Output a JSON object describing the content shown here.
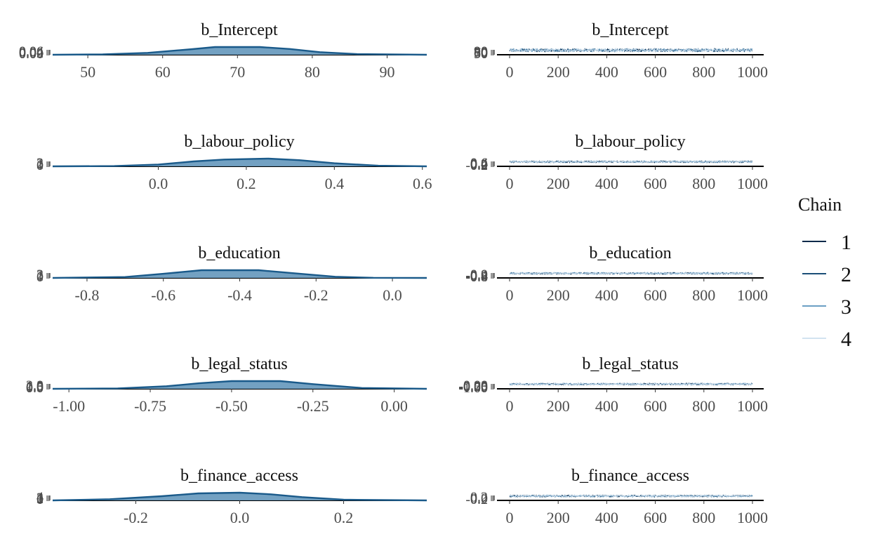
{
  "legend": {
    "title": "Chain",
    "items": [
      {
        "label": "1",
        "color": "#0b2a4a"
      },
      {
        "label": "2",
        "color": "#1b4f78"
      },
      {
        "label": "3",
        "color": "#6b9fc4"
      },
      {
        "label": "4",
        "color": "#d2e3f0"
      }
    ]
  },
  "chart_data": [
    {
      "type": "area",
      "title": "b_Intercept",
      "xticks": [
        "50",
        "60",
        "70",
        "80",
        "90"
      ],
      "xlim": [
        45.3,
        95.3
      ],
      "yticks": [
        "0.00",
        "0.02",
        "0.04",
        "0.06"
      ],
      "x": [
        45.3,
        52,
        58,
        64,
        67,
        73,
        77,
        81,
        86,
        95.3
      ],
      "y": [
        0.0,
        0.002,
        0.012,
        0.035,
        0.048,
        0.048,
        0.036,
        0.016,
        0.004,
        0.0
      ]
    },
    {
      "type": "line",
      "title": "b_Intercept",
      "xticks": [
        "0",
        "200",
        "400",
        "600",
        "800",
        "1000"
      ],
      "xlim": [
        0,
        1000
      ],
      "yticks": [
        "50",
        "60",
        "70",
        "80",
        "90"
      ],
      "ylim": [
        45,
        95
      ],
      "center": 70,
      "noise": 9
    },
    {
      "type": "area",
      "title": "b_labour_policy",
      "xticks": [
        "0.0",
        "0.2",
        "0.4",
        "0.6"
      ],
      "xlim": [
        -0.24,
        0.61
      ],
      "yticks": [
        "0",
        "1",
        "2",
        "3"
      ],
      "x": [
        -0.24,
        -0.1,
        0.0,
        0.08,
        0.15,
        0.25,
        0.32,
        0.4,
        0.5,
        0.61
      ],
      "y": [
        0.0,
        0.1,
        0.6,
        1.6,
        2.2,
        2.5,
        2.0,
        1.0,
        0.2,
        0.0
      ]
    },
    {
      "type": "line",
      "title": "b_labour_policy",
      "xticks": [
        "0",
        "200",
        "400",
        "600",
        "800",
        "1000"
      ],
      "xlim": [
        0,
        1000
      ],
      "yticks": [
        "-0.2",
        "0.0",
        "0.2",
        "0.4",
        "0.6"
      ],
      "ylim": [
        -0.25,
        0.65
      ],
      "center": 0.2,
      "noise": 0.1
    },
    {
      "type": "area",
      "title": "b_education",
      "xticks": [
        "-0.8",
        "-0.6",
        "-0.4",
        "-0.2",
        "0.0"
      ],
      "xlim": [
        -0.89,
        0.09
      ],
      "yticks": [
        "0",
        "1",
        "2",
        "3"
      ],
      "x": [
        -0.89,
        -0.7,
        -0.6,
        -0.5,
        -0.35,
        -0.25,
        -0.15,
        -0.05,
        0.09
      ],
      "y": [
        0.0,
        0.3,
        1.4,
        2.6,
        2.6,
        1.5,
        0.4,
        0.05,
        0.0
      ]
    },
    {
      "type": "line",
      "title": "b_education",
      "xticks": [
        "0",
        "200",
        "400",
        "600",
        "800",
        "1000"
      ],
      "xlim": [
        0,
        1000
      ],
      "yticks": [
        "-0.8",
        "-0.6",
        "-0.4",
        "-0.2",
        "0.0"
      ],
      "ylim": [
        -0.9,
        0.1
      ],
      "center": -0.4,
      "noise": 0.11
    },
    {
      "type": "area",
      "title": "b_legal_status",
      "xticks": [
        "-1.00",
        "-0.75",
        "-0.50",
        "-0.25",
        "0.00"
      ],
      "xlim": [
        -1.05,
        0.1
      ],
      "yticks": [
        "0.0",
        "0.5",
        "1.0",
        "1.5",
        "2.0"
      ],
      "x": [
        -1.05,
        -0.85,
        -0.7,
        -0.6,
        -0.5,
        -0.35,
        -0.25,
        -0.1,
        0.1
      ],
      "y": [
        0.0,
        0.1,
        0.6,
        1.3,
        1.8,
        1.8,
        1.1,
        0.2,
        0.0
      ]
    },
    {
      "type": "line",
      "title": "b_legal_status",
      "xticks": [
        "0",
        "200",
        "400",
        "600",
        "800",
        "1000"
      ],
      "xlim": [
        0,
        1000
      ],
      "yticks": [
        "-1.00",
        "-0.75",
        "-0.50",
        "-0.25",
        "0.00"
      ],
      "ylim": [
        -1.05,
        0.1
      ],
      "center": -0.45,
      "noise": 0.12
    },
    {
      "type": "area",
      "title": "b_finance_access",
      "xticks": [
        "-0.2",
        "0.0",
        "0.2"
      ],
      "xlim": [
        -0.36,
        0.36
      ],
      "yticks": [
        "0",
        "1",
        "2",
        "3",
        "4"
      ],
      "x": [
        -0.36,
        -0.25,
        -0.15,
        -0.08,
        0.0,
        0.06,
        0.12,
        0.2,
        0.36
      ],
      "y": [
        0.0,
        0.5,
        1.8,
        3.0,
        3.3,
        2.6,
        1.4,
        0.3,
        0.0
      ]
    },
    {
      "type": "line",
      "title": "b_finance_access",
      "xticks": [
        "0",
        "200",
        "400",
        "600",
        "800",
        "1000"
      ],
      "xlim": [
        0,
        1000
      ],
      "yticks": [
        "-0.2",
        "0.0",
        "0.2"
      ],
      "ylim": [
        -0.36,
        0.36
      ],
      "center": -0.02,
      "noise": 0.08
    }
  ]
}
